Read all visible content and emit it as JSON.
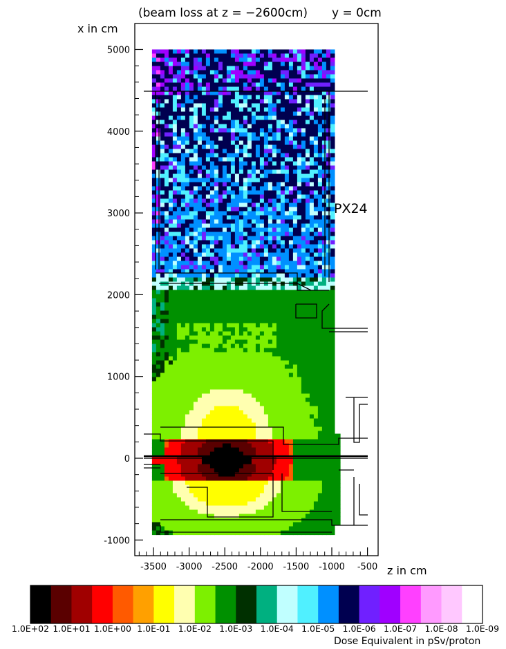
{
  "chart_data": {
    "type": "heatmap",
    "title": "(beam loss at z = −2600cm)",
    "subtitle": "y = 0cm",
    "xlabel": "z in cm",
    "ylabel": "x in cm",
    "xlim": [
      -3800,
      -400
    ],
    "ylim": [
      -1000,
      5200
    ],
    "x_ticks": [
      -3500,
      -3000,
      -2500,
      -2000,
      -1500,
      -1000,
      -500
    ],
    "x_tick_labels": [
      "-3500",
      "-3000",
      "-2500",
      "-2000",
      "-1500",
      "-1000",
      "-500"
    ],
    "y_ticks": [
      5000,
      4000,
      3000,
      2000,
      1000,
      0,
      -1000
    ],
    "y_tick_labels": [
      "5000",
      "4000",
      "3000",
      "2000",
      "1000",
      "0",
      "-1000"
    ],
    "annotation": "PX24",
    "colorbar": {
      "title": "Dose Equivalent in pSv/proton",
      "colors": [
        "#000000",
        "#5a0000",
        "#a00000",
        "#ff0000",
        "#ff5a00",
        "#ffa000",
        "#ffff00",
        "#ffffb0",
        "#7df000",
        "#009000",
        "#003000",
        "#00b080",
        "#c0ffff",
        "#50f0ff",
        "#0090ff",
        "#000050",
        "#7020ff",
        "#a000ff",
        "#ff40ff",
        "#ff9aff",
        "#ffc8ff",
        "#ffffff"
      ],
      "labels": [
        "1.0E+02",
        "1.0E+01",
        "1.0E+00",
        "1.0E-01",
        "1.0E-02",
        "1.0E-03",
        "1.0E-04",
        "1.0E-05",
        "1.0E-06",
        "1.0E-07",
        "1.0E-08",
        "1.0E-09"
      ]
    },
    "dose_regions": [
      {
        "level": "1.0E-05 to 1.0E-07",
        "z": [
          -3500,
          -1000
        ],
        "x": [
          4500,
          5000
        ]
      },
      {
        "level": "1.0E-05 to 1.0E-07",
        "z": [
          -3500,
          -1000
        ],
        "x": [
          2200,
          4500
        ]
      },
      {
        "level": "1.0E-03",
        "z": [
          -3500,
          -1000
        ],
        "x": [
          -900,
          2200
        ]
      },
      {
        "level": "1.0E-02",
        "z": [
          -3200,
          -1700
        ],
        "x": [
          200,
          1200
        ]
      },
      {
        "level": "1.0E-01",
        "z": [
          -3200,
          -1900
        ],
        "x": [
          -700,
          500
        ]
      },
      {
        "level": "1.0E+00",
        "z": [
          -3400,
          -1600
        ],
        "x": [
          -200,
          250
        ]
      },
      {
        "level": "1.0E+01 to 1.0E+02",
        "z": [
          -2650,
          -2300
        ],
        "x": [
          -100,
          150
        ]
      }
    ]
  }
}
